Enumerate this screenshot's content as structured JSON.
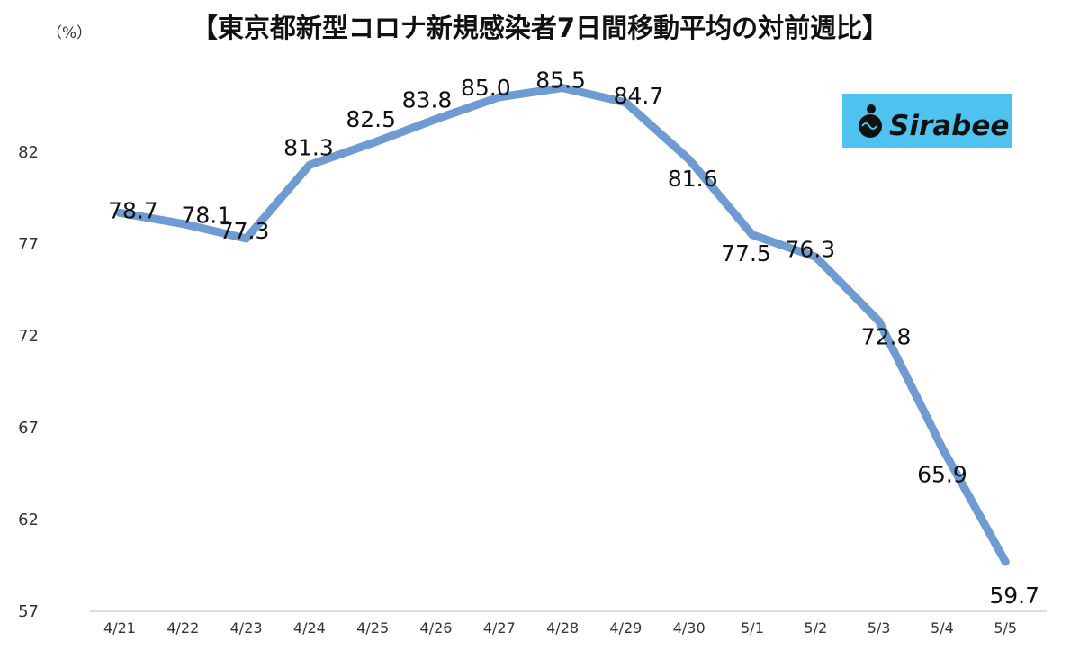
{
  "chart_data": {
    "type": "line",
    "title": "【東京都新型コロナ新規感染者7日間移動平均の対前週比】",
    "unit_label": "（%）",
    "xlabel": "",
    "ylabel": "",
    "categories": [
      "4/21",
      "4/22",
      "4/23",
      "4/24",
      "4/25",
      "4/26",
      "4/27",
      "4/28",
      "4/29",
      "4/30",
      "5/1",
      "5/2",
      "5/3",
      "5/4",
      "5/5"
    ],
    "values": [
      78.7,
      78.1,
      77.3,
      81.3,
      82.5,
      83.8,
      85.0,
      85.5,
      84.7,
      81.6,
      77.5,
      76.3,
      72.8,
      65.9,
      59.7
    ],
    "value_labels": [
      "78.7",
      "78.1",
      "77.3",
      "81.3",
      "82.5",
      "83.8",
      "85.0",
      "85.5",
      "84.7",
      "81.6",
      "77.5",
      "76.3",
      "72.8",
      "65.9",
      "59.7"
    ],
    "yticks": [
      57,
      62,
      67,
      72,
      77,
      82
    ],
    "ylim": [
      57,
      87
    ],
    "grid": false,
    "line_color": "#6e9bd1"
  },
  "logo": {
    "text": "Sirabee",
    "bg_color": "#4fc3ef",
    "icon": "sirabee-logo-icon"
  }
}
